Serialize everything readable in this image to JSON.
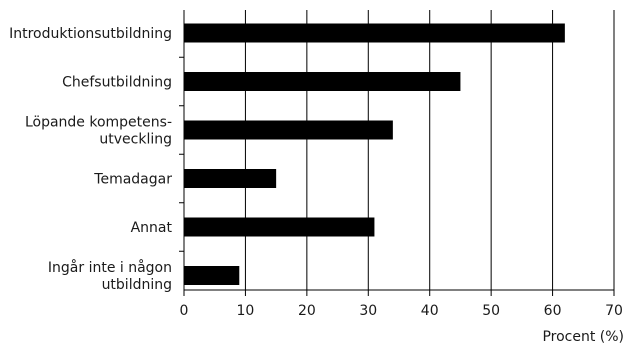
{
  "chart_data": {
    "type": "bar",
    "orientation": "horizontal",
    "categories": [
      [
        "Introduktionsutbildning"
      ],
      [
        "Chefsutbildning"
      ],
      [
        "Löpande kompetens-",
        "utveckling"
      ],
      [
        "Temadagar"
      ],
      [
        "Annat"
      ],
      [
        "Ingår inte i någon",
        "utbildning"
      ]
    ],
    "values": [
      62,
      45,
      34,
      15,
      31,
      9
    ],
    "xlabel": "Procent (%)",
    "xlim": [
      0,
      70
    ],
    "xticks": [
      0,
      10,
      20,
      30,
      40,
      50,
      60,
      70
    ],
    "grid": "vertical",
    "bar_color": "#000000",
    "grid_color": "#000000"
  }
}
